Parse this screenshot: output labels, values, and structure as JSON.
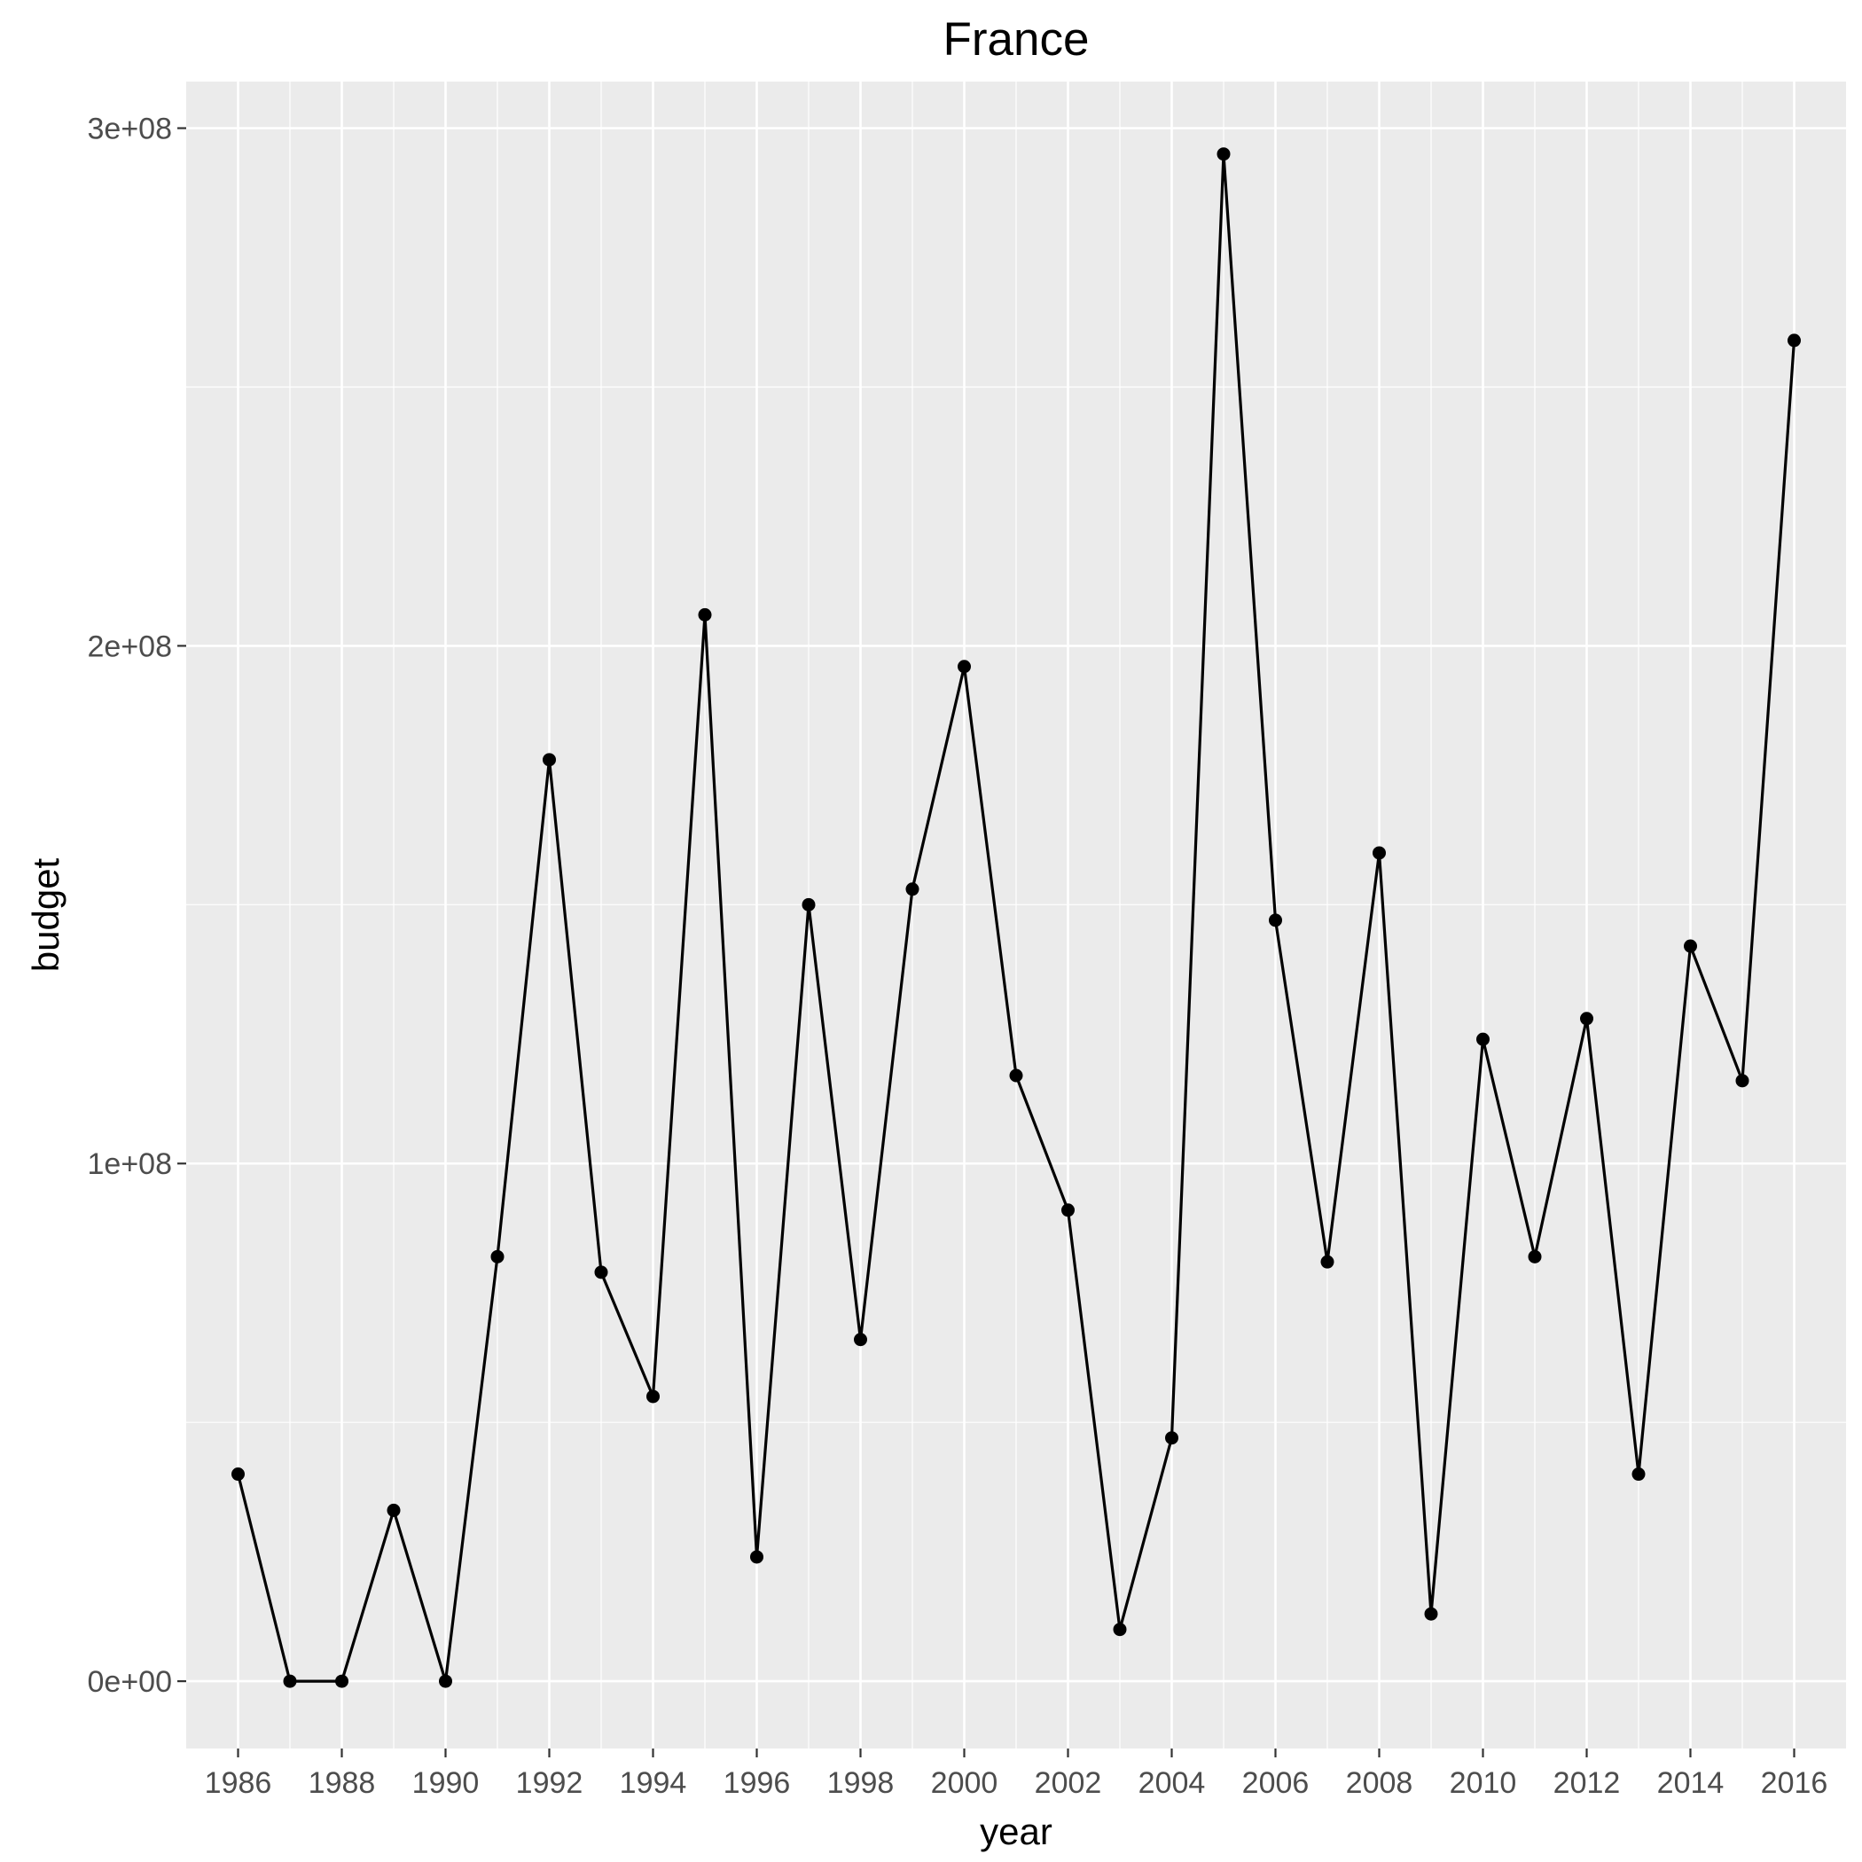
{
  "chart_data": {
    "type": "line",
    "title": "France",
    "xlabel": "year",
    "ylabel": "budget",
    "xlim": [
      1985,
      2017
    ],
    "ylim": [
      -13000000,
      309000000
    ],
    "x_ticks": [
      1986,
      1988,
      1990,
      1992,
      1994,
      1996,
      1998,
      2000,
      2002,
      2004,
      2006,
      2008,
      2010,
      2012,
      2014,
      2016
    ],
    "x_tick_labels": [
      "1986",
      "1988",
      "1990",
      "1992",
      "1994",
      "1996",
      "1998",
      "2000",
      "2002",
      "2004",
      "2006",
      "2008",
      "2010",
      "2012",
      "2014",
      "2016"
    ],
    "y_ticks": [
      0,
      100000000,
      200000000,
      300000000
    ],
    "y_tick_labels": [
      "0e+00",
      "1e+08",
      "2e+08",
      "3e+08"
    ],
    "grid": true,
    "legend": false,
    "colors": {
      "panel_background": "#ebebeb",
      "gridline": "#ffffff",
      "line": "#000000",
      "point": "#000000",
      "tick_label": "#4d4d4d",
      "tick_mark": "#333333"
    },
    "series": [
      {
        "x": [
          1986,
          1987,
          1988,
          1989,
          1990,
          1991,
          1992,
          1993,
          1994,
          1995,
          1996,
          1997,
          1998,
          1999,
          2000,
          2001,
          2002,
          2003,
          2004,
          2005,
          2006,
          2007,
          2008,
          2009,
          2010,
          2011,
          2012,
          2013,
          2014,
          2015,
          2016
        ],
        "y": [
          40000000,
          0,
          0,
          33000000,
          0,
          82000000,
          178000000,
          79000000,
          55000000,
          206000000,
          24000000,
          150000000,
          66000000,
          153000000,
          196000000,
          117000000,
          91000000,
          10000000,
          47000000,
          295000000,
          147000000,
          81000000,
          160000000,
          13000000,
          124000000,
          82000000,
          128000000,
          40000000,
          142000000,
          116000000,
          259000000
        ]
      }
    ]
  }
}
